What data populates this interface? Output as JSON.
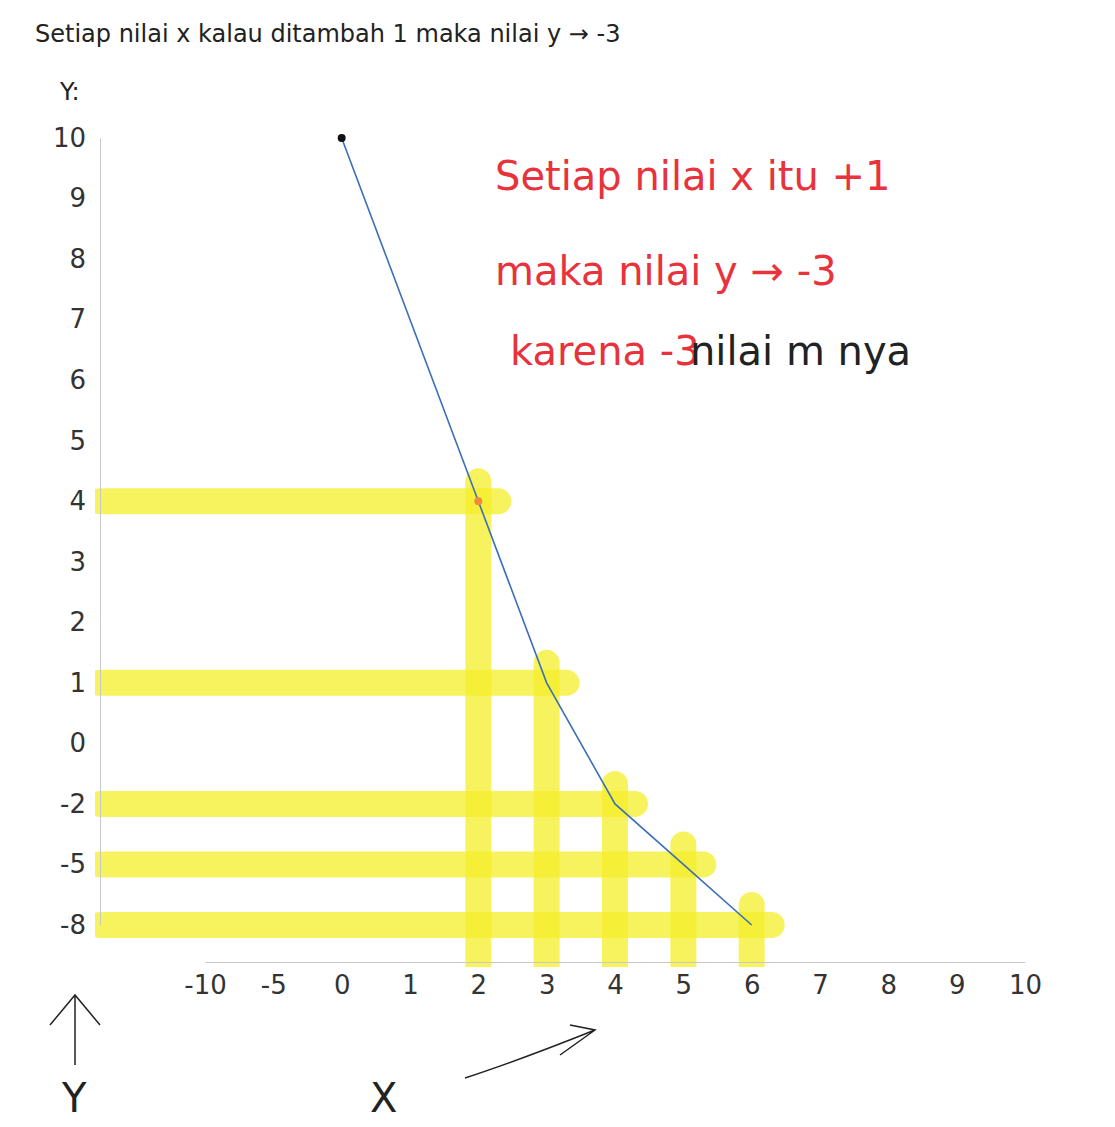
{
  "chart_data": {
    "type": "line",
    "title": "Setiap nilai x kalau ditambah 1 maka nilai y → -3",
    "annotations": [
      "Setiap nilai x itu +1",
      "maka nilai y → -3",
      "karena -3",
      "nilai m nya"
    ],
    "y_heading": "Y:",
    "x_label": "X",
    "y_label": "Y",
    "x": [
      0,
      2,
      3,
      4,
      5,
      6
    ],
    "values": [
      10,
      4,
      1,
      -2,
      -5,
      -8
    ],
    "color": "#3b6fb6",
    "xlim": [
      -10,
      10
    ],
    "xticks": [
      -10,
      -5,
      0,
      1,
      2,
      3,
      4,
      5,
      6,
      7,
      8,
      9,
      10
    ],
    "ylim": [
      -8,
      10
    ],
    "yticks": [
      -8,
      -5,
      -2,
      0,
      1,
      2,
      3,
      4,
      5,
      6,
      7,
      8,
      9,
      10
    ],
    "grid": false
  }
}
